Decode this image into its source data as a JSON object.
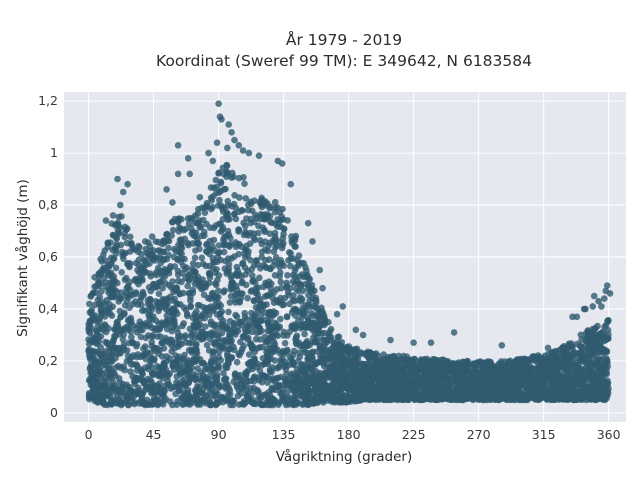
{
  "chart_data": {
    "type": "scatter",
    "title_line1": "År 1979 - 2019",
    "title_line2": "Koordinat (Sweref 99 TM): E 349642, N 6183584",
    "xlabel": "Vågriktning (grader)",
    "ylabel": "Signifikant våghöjd (m)",
    "xlim": [
      -17,
      372
    ],
    "ylim": [
      -0.035,
      1.235
    ],
    "x_ticks": [
      0,
      45,
      90,
      135,
      180,
      225,
      270,
      315,
      360
    ],
    "x_tick_labels": [
      "0",
      "45",
      "90",
      "135",
      "180",
      "225",
      "270",
      "315",
      "360"
    ],
    "y_ticks": [
      0,
      0.2,
      0.4,
      0.6,
      0.8,
      1,
      1.2
    ],
    "y_tick_labels": [
      "0",
      "0,2",
      "0,4",
      "0,6",
      "0,8",
      "1",
      "1,2"
    ],
    "grid": true,
    "legend": false,
    "colors": {
      "marker": "#2f5a6f",
      "plot_background": "#e5e8ef",
      "grid": "#ffffff"
    },
    "envelope": {
      "x": [
        0,
        2,
        5,
        10,
        15,
        20,
        25,
        30,
        35,
        40,
        45,
        50,
        55,
        60,
        65,
        70,
        75,
        80,
        85,
        90,
        95,
        100,
        105,
        110,
        115,
        120,
        125,
        130,
        135,
        140,
        145,
        150,
        155,
        160,
        165,
        170,
        175,
        180,
        190,
        200,
        210,
        220,
        230,
        240,
        250,
        260,
        270,
        280,
        290,
        300,
        310,
        320,
        330,
        335,
        340,
        345,
        350,
        355,
        360
      ],
      "y_min": [
        0.05,
        0.05,
        0.04,
        0.03,
        0.03,
        0.03,
        0.03,
        0.03,
        0.03,
        0.03,
        0.03,
        0.03,
        0.03,
        0.03,
        0.03,
        0.03,
        0.03,
        0.03,
        0.03,
        0.03,
        0.03,
        0.03,
        0.03,
        0.03,
        0.03,
        0.03,
        0.03,
        0.03,
        0.03,
        0.03,
        0.03,
        0.03,
        0.03,
        0.03,
        0.04,
        0.04,
        0.04,
        0.04,
        0.05,
        0.05,
        0.05,
        0.05,
        0.05,
        0.05,
        0.05,
        0.05,
        0.05,
        0.05,
        0.05,
        0.05,
        0.05,
        0.05,
        0.05,
        0.05,
        0.05,
        0.05,
        0.05,
        0.05,
        0.05
      ],
      "y_max": [
        0.42,
        0.47,
        0.55,
        0.63,
        0.72,
        0.77,
        0.75,
        0.69,
        0.65,
        0.7,
        0.68,
        0.66,
        0.72,
        0.78,
        0.74,
        0.77,
        0.78,
        0.81,
        0.88,
        0.93,
        0.97,
        0.95,
        0.92,
        0.89,
        0.86,
        0.83,
        0.8,
        0.84,
        0.78,
        0.72,
        0.68,
        0.58,
        0.5,
        0.42,
        0.36,
        0.32,
        0.28,
        0.26,
        0.24,
        0.23,
        0.22,
        0.22,
        0.21,
        0.21,
        0.2,
        0.2,
        0.2,
        0.2,
        0.2,
        0.21,
        0.22,
        0.24,
        0.26,
        0.28,
        0.3,
        0.32,
        0.33,
        0.34,
        0.36
      ]
    },
    "outliers": [
      [
        20,
        0.9
      ],
      [
        27,
        0.88
      ],
      [
        24,
        0.85
      ],
      [
        22,
        0.8
      ],
      [
        17,
        0.76
      ],
      [
        12,
        0.74
      ],
      [
        62,
        0.92
      ],
      [
        54,
        0.86
      ],
      [
        58,
        0.81
      ],
      [
        70,
        0.92
      ],
      [
        77,
        0.83
      ],
      [
        83,
        1.0
      ],
      [
        86,
        0.97
      ],
      [
        89,
        1.04
      ],
      [
        90,
        1.19
      ],
      [
        91,
        1.14
      ],
      [
        92,
        1.13
      ],
      [
        97,
        1.11
      ],
      [
        99,
        1.08
      ],
      [
        101,
        1.05
      ],
      [
        104,
        1.03
      ],
      [
        107,
        1.01
      ],
      [
        111,
        1.0
      ],
      [
        118,
        0.99
      ],
      [
        96,
        1.02
      ],
      [
        69,
        0.98
      ],
      [
        62,
        1.03
      ],
      [
        131,
        0.97
      ],
      [
        134,
        0.96
      ],
      [
        140,
        0.88
      ],
      [
        152,
        0.73
      ],
      [
        155,
        0.66
      ],
      [
        160,
        0.55
      ],
      [
        162,
        0.48
      ],
      [
        172,
        0.38
      ],
      [
        176,
        0.41
      ],
      [
        185,
        0.32
      ],
      [
        190,
        0.3
      ],
      [
        209,
        0.28
      ],
      [
        225,
        0.27
      ],
      [
        237,
        0.27
      ],
      [
        253,
        0.31
      ],
      [
        286,
        0.26
      ],
      [
        318,
        0.25
      ],
      [
        335,
        0.37
      ],
      [
        344,
        0.4
      ],
      [
        350,
        0.45
      ],
      [
        349,
        0.41
      ],
      [
        357,
        0.44
      ],
      [
        358,
        0.47
      ],
      [
        359,
        0.49
      ],
      [
        361,
        0.46
      ],
      [
        343,
        0.4
      ],
      [
        338,
        0.37
      ],
      [
        353,
        0.43
      ],
      [
        355,
        0.41
      ]
    ]
  }
}
